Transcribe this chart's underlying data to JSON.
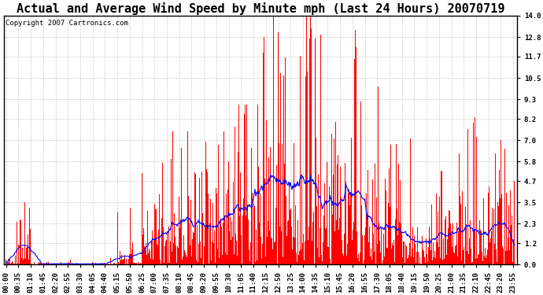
{
  "title": "Actual and Average Wind Speed by Minute mph (Last 24 Hours) 20070719",
  "copyright_text": "Copyright 2007 Cartronics.com",
  "yticks": [
    0.0,
    1.2,
    2.3,
    3.5,
    4.7,
    5.8,
    7.0,
    8.2,
    9.3,
    10.5,
    11.7,
    12.8,
    14.0
  ],
  "ymax": 14.0,
  "ymin": 0.0,
  "bar_color": "#FF0000",
  "line_color": "#0000FF",
  "background_color": "#FFFFFF",
  "grid_color": "#C0C0C0",
  "title_fontsize": 11,
  "copyright_fontsize": 6.5,
  "tick_fontsize": 6.5
}
